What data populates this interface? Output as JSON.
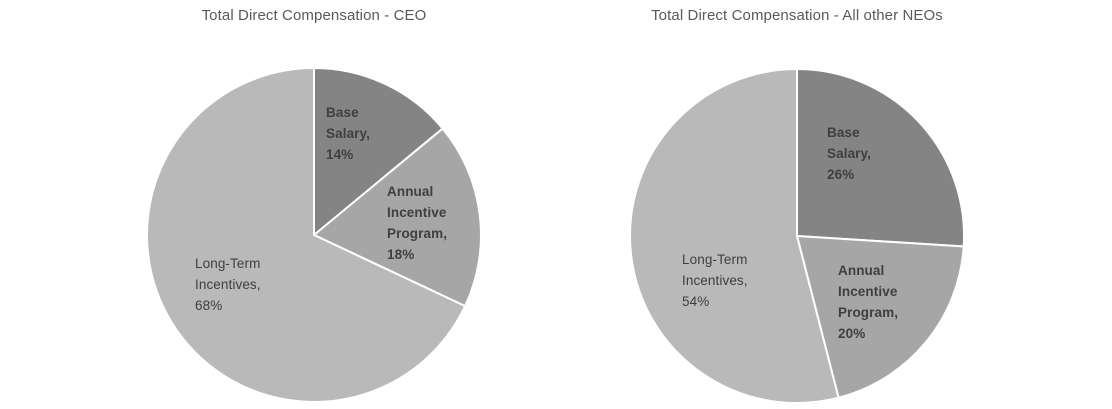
{
  "style": {
    "background_color": "#ffffff",
    "divider_color": "#ffffff",
    "title_color": "#595959",
    "label_color": "#3f3f3f"
  },
  "chart_data": [
    {
      "type": "pie",
      "title": "Total Direct Compensation - CEO",
      "unit": "%",
      "start_angle": "12 o'clock",
      "direction": "clockwise",
      "legend": "none (labels inside slices)",
      "slices": [
        {
          "label": "Base Salary",
          "value": 14,
          "pct_text": "14%",
          "color": "#848484",
          "label_text": "Base\nSalary,\n14%",
          "bold": true
        },
        {
          "label": "Annual Incentive Program",
          "value": 18,
          "pct_text": "18%",
          "color": "#a6a6a6",
          "label_text": "Annual\nIncentive\nProgram,\n18%",
          "bold": true
        },
        {
          "label": "Long-Term Incentives",
          "value": 68,
          "pct_text": "68%",
          "color": "#b9b9b9",
          "label_text": "Long-Term\nIncentives,\n68%",
          "bold": false
        }
      ]
    },
    {
      "type": "pie",
      "title": "Total Direct Compensation - All other NEOs",
      "unit": "%",
      "start_angle": "12 o'clock",
      "direction": "clockwise",
      "legend": "none (labels inside slices)",
      "slices": [
        {
          "label": "Base Salary",
          "value": 26,
          "pct_text": "26%",
          "color": "#848484",
          "label_text": "Base\nSalary,\n26%",
          "bold": true
        },
        {
          "label": "Annual Incentive Program",
          "value": 20,
          "pct_text": "20%",
          "color": "#a6a6a6",
          "label_text": "Annual\nIncentive\nProgram,\n20%",
          "bold": true
        },
        {
          "label": "Long-Term Incentives",
          "value": 54,
          "pct_text": "54%",
          "color": "#b9b9b9",
          "label_text": "Long-Term\nIncentives,\n54%",
          "bold": false
        }
      ]
    }
  ]
}
